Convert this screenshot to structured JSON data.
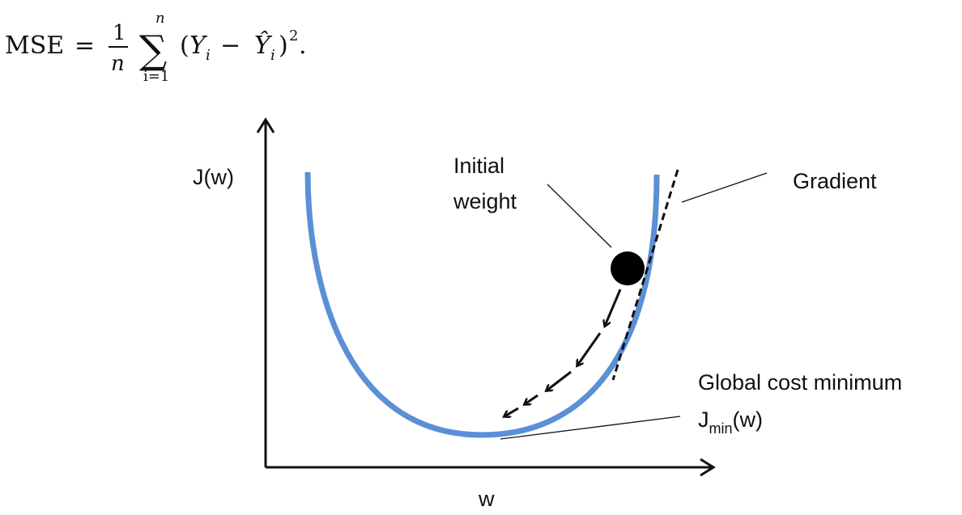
{
  "formula": {
    "lhs": "MSE",
    "equals": "=",
    "frac_num": "1",
    "frac_den": "n",
    "sum_symbol": "∑",
    "sum_upper": "n",
    "sum_lower": "i=1",
    "body_open": "(",
    "Y": "Y",
    "sub_i": "i",
    "minus": "−",
    "Yhat": "Ŷ",
    "body_close": ")",
    "power": "2",
    "end": "."
  },
  "labels": {
    "y_axis": "J(w)",
    "x_axis": "w",
    "initial_weight_line1": "Initial",
    "initial_weight_line2": "weight",
    "gradient": "Gradient",
    "global_min": "Global cost minimum",
    "jmin_main": "J",
    "jmin_sub": "min",
    "jmin_tail": "(w)"
  },
  "colors": {
    "curve": "#5b8fd6",
    "ink": "#111111"
  }
}
